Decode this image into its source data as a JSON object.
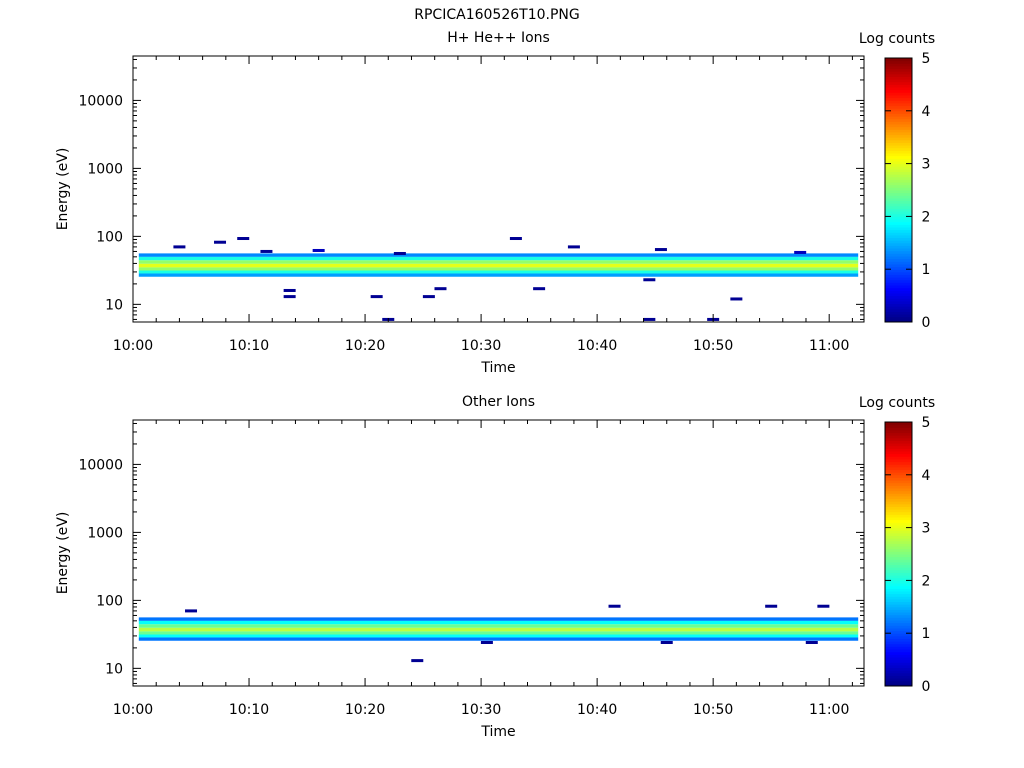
{
  "figure": {
    "filename": "RPCICA160526T10.PNG"
  },
  "colormap": [
    "#00007f",
    "#0000ff",
    "#007fff",
    "#00ffff",
    "#7fff7f",
    "#ffff00",
    "#ff7f00",
    "#ff0000",
    "#7f0000"
  ],
  "chart_data": [
    {
      "type": "heatmap",
      "title": "H+ He++ Ions",
      "xlabel": "Time",
      "ylabel": "Energy (eV)",
      "x_tick_labels": [
        "10:00",
        "10:10",
        "10:20",
        "10:30",
        "10:40",
        "10:50",
        "11:00"
      ],
      "x_range": [
        "10:00",
        "11:03"
      ],
      "y_scale": "log",
      "y_range": [
        5.5,
        45000
      ],
      "y_tick_labels": [
        "10",
        "100",
        "1000",
        "10000"
      ],
      "colorbar": {
        "label": "Log counts",
        "range": [
          0,
          5
        ],
        "tick_labels": [
          "0",
          "1",
          "2",
          "3",
          "4",
          "5"
        ]
      },
      "band": {
        "t_start": "10:00.5",
        "t_end": "11:02.5",
        "energy_levels": [
          53,
          47,
          42,
          37,
          33,
          30,
          27
        ],
        "log_counts": [
          1.3,
          2.0,
          2.6,
          3.0,
          2.6,
          2.0,
          1.4
        ]
      },
      "sparse_points": [
        {
          "t": "10:04",
          "e": 70,
          "c": 0.1
        },
        {
          "t": "10:07.5",
          "e": 82,
          "c": 0.1
        },
        {
          "t": "10:09.5",
          "e": 93,
          "c": 0.1
        },
        {
          "t": "10:11.5",
          "e": 60,
          "c": 0.1
        },
        {
          "t": "10:13.5",
          "e": 16,
          "c": 0.1
        },
        {
          "t": "10:13.5",
          "e": 13,
          "c": 0.1
        },
        {
          "t": "10:16",
          "e": 62,
          "c": 0.3
        },
        {
          "t": "10:21",
          "e": 13,
          "c": 0.1
        },
        {
          "t": "10:22",
          "e": 6,
          "c": 0.1
        },
        {
          "t": "10:23",
          "e": 56,
          "c": 0.1
        },
        {
          "t": "10:25.5",
          "e": 13,
          "c": 0.1
        },
        {
          "t": "10:26.5",
          "e": 17,
          "c": 0.1
        },
        {
          "t": "10:33",
          "e": 93,
          "c": 0.1
        },
        {
          "t": "10:35",
          "e": 17,
          "c": 0.1
        },
        {
          "t": "10:38",
          "e": 70,
          "c": 0.1
        },
        {
          "t": "10:44.5",
          "e": 23,
          "c": 0.1
        },
        {
          "t": "10:44.5",
          "e": 6,
          "c": 0.1
        },
        {
          "t": "10:45.5",
          "e": 64,
          "c": 0.1
        },
        {
          "t": "10:50",
          "e": 6,
          "c": 0.1
        },
        {
          "t": "10:52",
          "e": 12,
          "c": 0.1
        },
        {
          "t": "10:57.5",
          "e": 58,
          "c": 0.3
        }
      ]
    },
    {
      "type": "heatmap",
      "title": "Other Ions",
      "xlabel": "Time",
      "ylabel": "Energy (eV)",
      "x_tick_labels": [
        "10:00",
        "10:10",
        "10:20",
        "10:30",
        "10:40",
        "10:50",
        "11:00"
      ],
      "x_range": [
        "10:00",
        "11:03"
      ],
      "y_scale": "log",
      "y_range": [
        5.5,
        45000
      ],
      "y_tick_labels": [
        "10",
        "100",
        "1000",
        "10000"
      ],
      "colorbar": {
        "label": "Log counts",
        "range": [
          0,
          5
        ],
        "tick_labels": [
          "0",
          "1",
          "2",
          "3",
          "4",
          "5"
        ]
      },
      "band": {
        "t_start": "10:00.5",
        "t_end": "11:02.5",
        "energy_levels": [
          53,
          47,
          42,
          37,
          33,
          30,
          27
        ],
        "log_counts": [
          1.2,
          1.9,
          2.4,
          2.8,
          2.4,
          1.9,
          1.2
        ]
      },
      "sparse_points": [
        {
          "t": "10:05",
          "e": 70,
          "c": 0.1
        },
        {
          "t": "10:24.5",
          "e": 13,
          "c": 0.1
        },
        {
          "t": "10:41.5",
          "e": 82,
          "c": 0.1
        },
        {
          "t": "10:55",
          "e": 82,
          "c": 0.1
        },
        {
          "t": "10:59.5",
          "e": 82,
          "c": 0.1
        },
        {
          "t": "10:30.5",
          "e": 24,
          "c": 0.1
        },
        {
          "t": "10:46",
          "e": 24,
          "c": 0.1
        },
        {
          "t": "10:58.5",
          "e": 24,
          "c": 0.1
        }
      ]
    }
  ]
}
